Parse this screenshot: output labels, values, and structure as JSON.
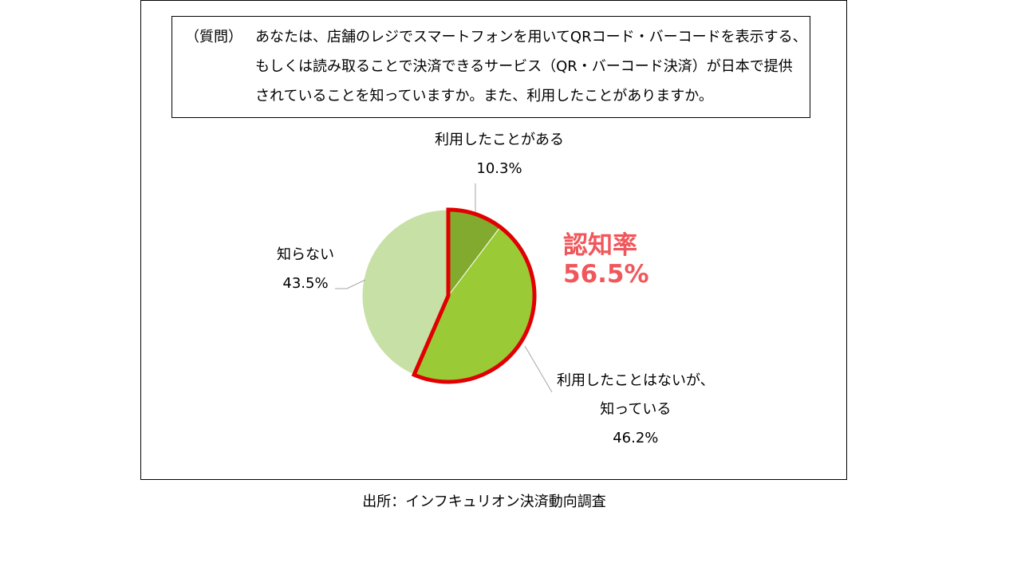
{
  "question": {
    "tag": "（質問）",
    "lines": [
      "あなたは、店舗のレジでスマートフォンを用いてQRコード・バーコードを表示する、",
      "もしくは読み取ることで決済できるサービス（QR・バーコード決済）が日本で提供",
      "されていることを知っていますか。また、利用したことがありますか。"
    ]
  },
  "highlight": {
    "label": "認知率",
    "value": "56.5%",
    "color": "#f0575b",
    "outline_color": "#e00000"
  },
  "source": "出所：インフキュリオン決済動向調査",
  "chart_data": {
    "type": "pie",
    "title": "",
    "start_angle_deg": 0,
    "direction": "clockwise",
    "slices": [
      {
        "label": "利用したことがある",
        "value": 10.3,
        "value_label": "10.3%",
        "color": "#82aa2e"
      },
      {
        "label_lines": [
          "利用したことはないが、",
          "知っている"
        ],
        "value": 46.2,
        "value_label": "46.2%",
        "color": "#9acb36"
      },
      {
        "label": "知らない",
        "value": 43.5,
        "value_label": "43.5%",
        "color": "#c7e0a6"
      }
    ],
    "highlighted_slices": [
      0,
      1
    ]
  }
}
